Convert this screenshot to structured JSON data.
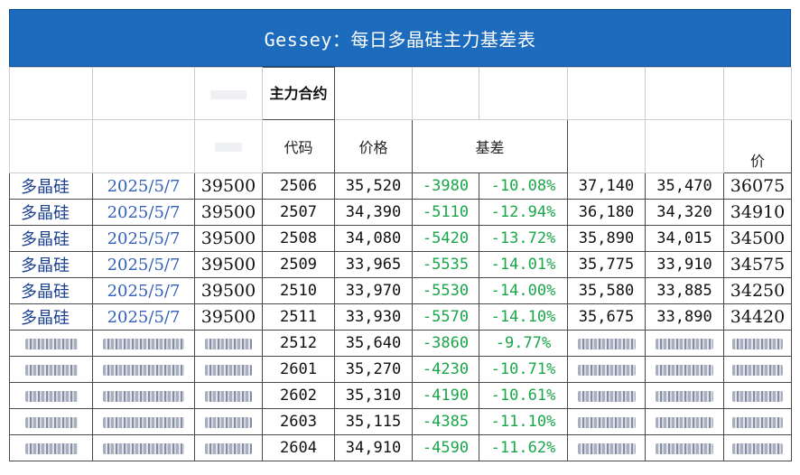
{
  "title": "Gessey：每日多晶硅主力基差表",
  "header": {
    "main_contract": "主力合约",
    "code": "代码",
    "price": "价格",
    "basis": "基差",
    "price_short": "价"
  },
  "rows": [
    {
      "name": "多晶硅",
      "date": "2025/5/7",
      "spot": "39500",
      "code": "2506",
      "price": "35,520",
      "basis": "-3980",
      "pct": "-10.08%",
      "c1": "37,140",
      "c2": "35,470",
      "c3": "36075"
    },
    {
      "name": "多晶硅",
      "date": "2025/5/7",
      "spot": "39500",
      "code": "2507",
      "price": "34,390",
      "basis": "-5110",
      "pct": "-12.94%",
      "c1": "36,180",
      "c2": "34,320",
      "c3": "34910"
    },
    {
      "name": "多晶硅",
      "date": "2025/5/7",
      "spot": "39500",
      "code": "2508",
      "price": "34,080",
      "basis": "-5420",
      "pct": "-13.72%",
      "c1": "35,890",
      "c2": "34,015",
      "c3": "34500"
    },
    {
      "name": "多晶硅",
      "date": "2025/5/7",
      "spot": "39500",
      "code": "2509",
      "price": "33,965",
      "basis": "-5535",
      "pct": "-14.01%",
      "c1": "35,775",
      "c2": "33,910",
      "c3": "34575"
    },
    {
      "name": "多晶硅",
      "date": "2025/5/7",
      "spot": "39500",
      "code": "2510",
      "price": "33,970",
      "basis": "-5530",
      "pct": "-14.00%",
      "c1": "35,580",
      "c2": "33,885",
      "c3": "34250"
    },
    {
      "name": "多晶硅",
      "date": "2025/5/7",
      "spot": "39500",
      "code": "2511",
      "price": "33,930",
      "basis": "-5570",
      "pct": "-14.10%",
      "c1": "35,675",
      "c2": "33,890",
      "c3": "34420"
    },
    {
      "code": "2512",
      "price": "35,640",
      "basis": "-3860",
      "pct": "-9.77%"
    },
    {
      "code": "2601",
      "price": "35,270",
      "basis": "-4230",
      "pct": "-10.71%"
    },
    {
      "code": "2602",
      "price": "35,310",
      "basis": "-4190",
      "pct": "-10.61%"
    },
    {
      "code": "2603",
      "price": "35,115",
      "basis": "-4385",
      "pct": "-11.10%"
    },
    {
      "code": "2604",
      "price": "34,910",
      "basis": "-4590",
      "pct": "-11.62%"
    }
  ]
}
